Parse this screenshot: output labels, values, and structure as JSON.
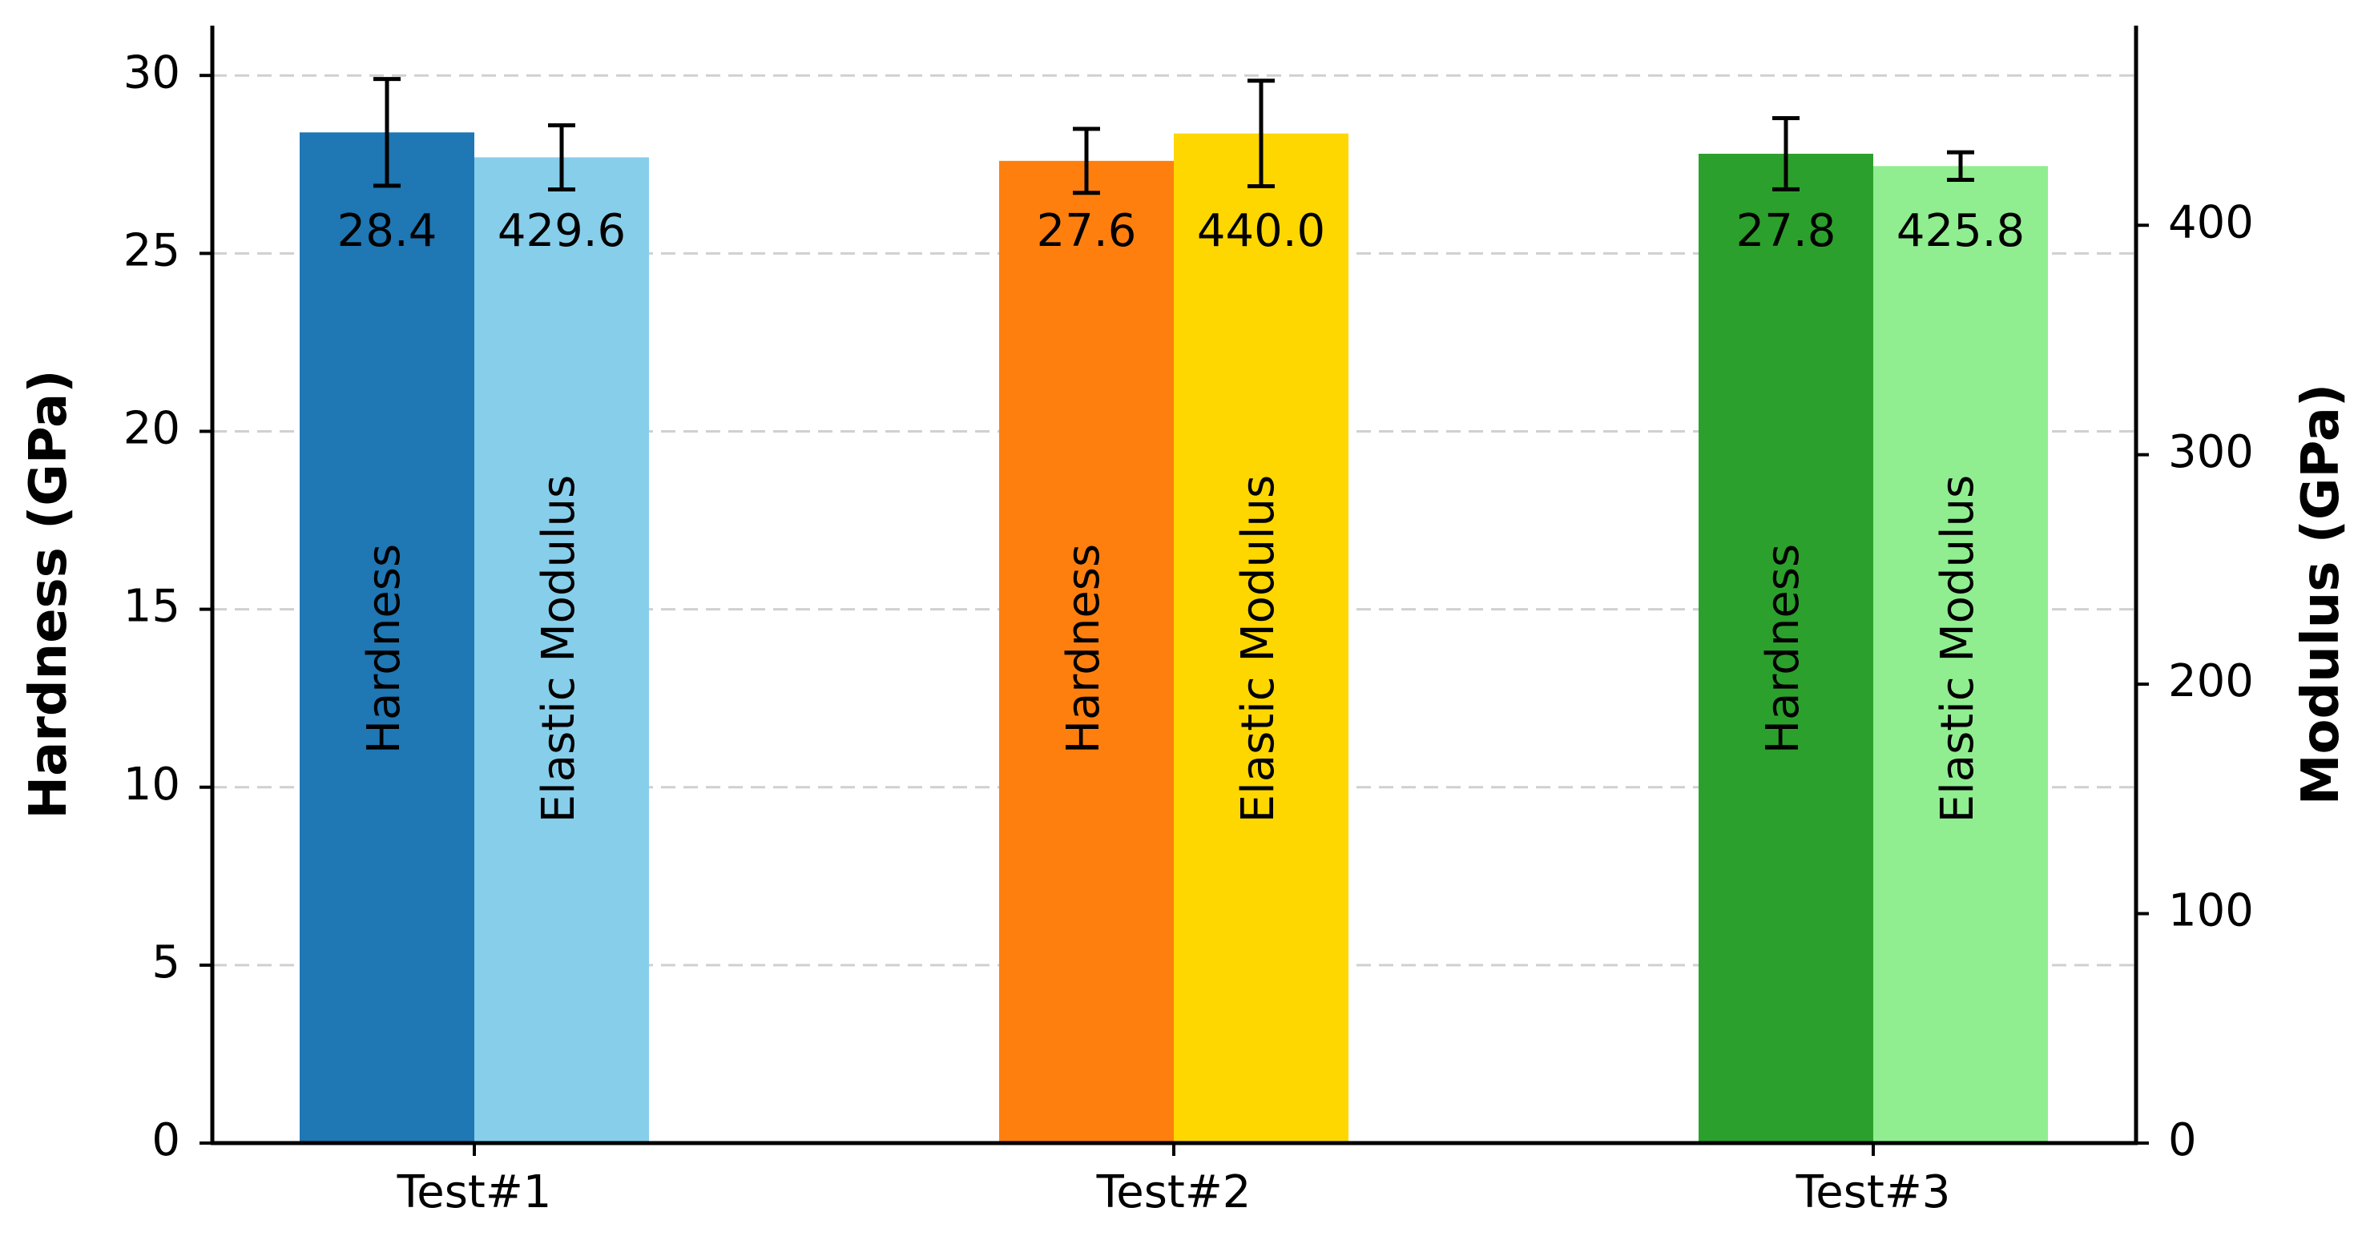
{
  "chart_data": {
    "type": "bar",
    "categories": [
      "Test#1",
      "Test#2",
      "Test#3"
    ],
    "ylabel_left": "Hardness (GPa)",
    "ylabel_right": "Modulus (GPa)",
    "ylim_left": [
      0,
      31.4
    ],
    "ylim_right": [
      0,
      487
    ],
    "yticks_left": [
      0,
      5,
      10,
      15,
      20,
      25,
      30
    ],
    "yticks_right": [
      0,
      100,
      200,
      300,
      400
    ],
    "grid": "horizontal dashed (left axis)",
    "series": [
      {
        "name": "Hardness",
        "axis": "left",
        "values": [
          28.4,
          27.6,
          27.8
        ],
        "errors": [
          1.5,
          0.9,
          1.0
        ],
        "value_labels": [
          "28.4",
          "27.6",
          "27.8"
        ],
        "colors": [
          "#1f77b4",
          "#ff7f0e",
          "#2ca02c"
        ]
      },
      {
        "name": "Elastic Modulus",
        "axis": "right",
        "values": [
          429.6,
          440.0,
          425.8
        ],
        "errors": [
          14,
          23,
          6
        ],
        "value_labels": [
          "429.6",
          "440.0",
          "425.8"
        ],
        "colors": [
          "#87ceeb",
          "#ffd700",
          "#90ee90"
        ]
      }
    ]
  }
}
